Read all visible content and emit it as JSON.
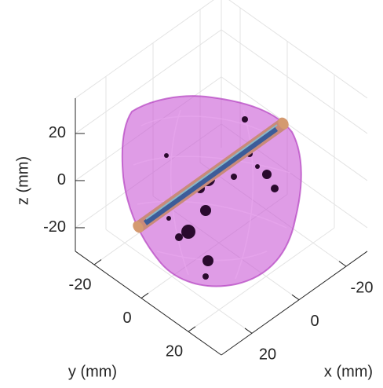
{
  "chart_data": {
    "type": "3d",
    "xlabel": "x (mm)",
    "ylabel": "y (mm)",
    "zlabel": "z (mm)",
    "xlim": [
      -29,
      33
    ],
    "ylim": [
      -28,
      34
    ],
    "zlim": [
      -30,
      35
    ],
    "xticks": [
      -20,
      0,
      20
    ],
    "yticks": [
      -20,
      0,
      20
    ],
    "zticks": [
      -20,
      0,
      20
    ],
    "grid": true
  }
}
